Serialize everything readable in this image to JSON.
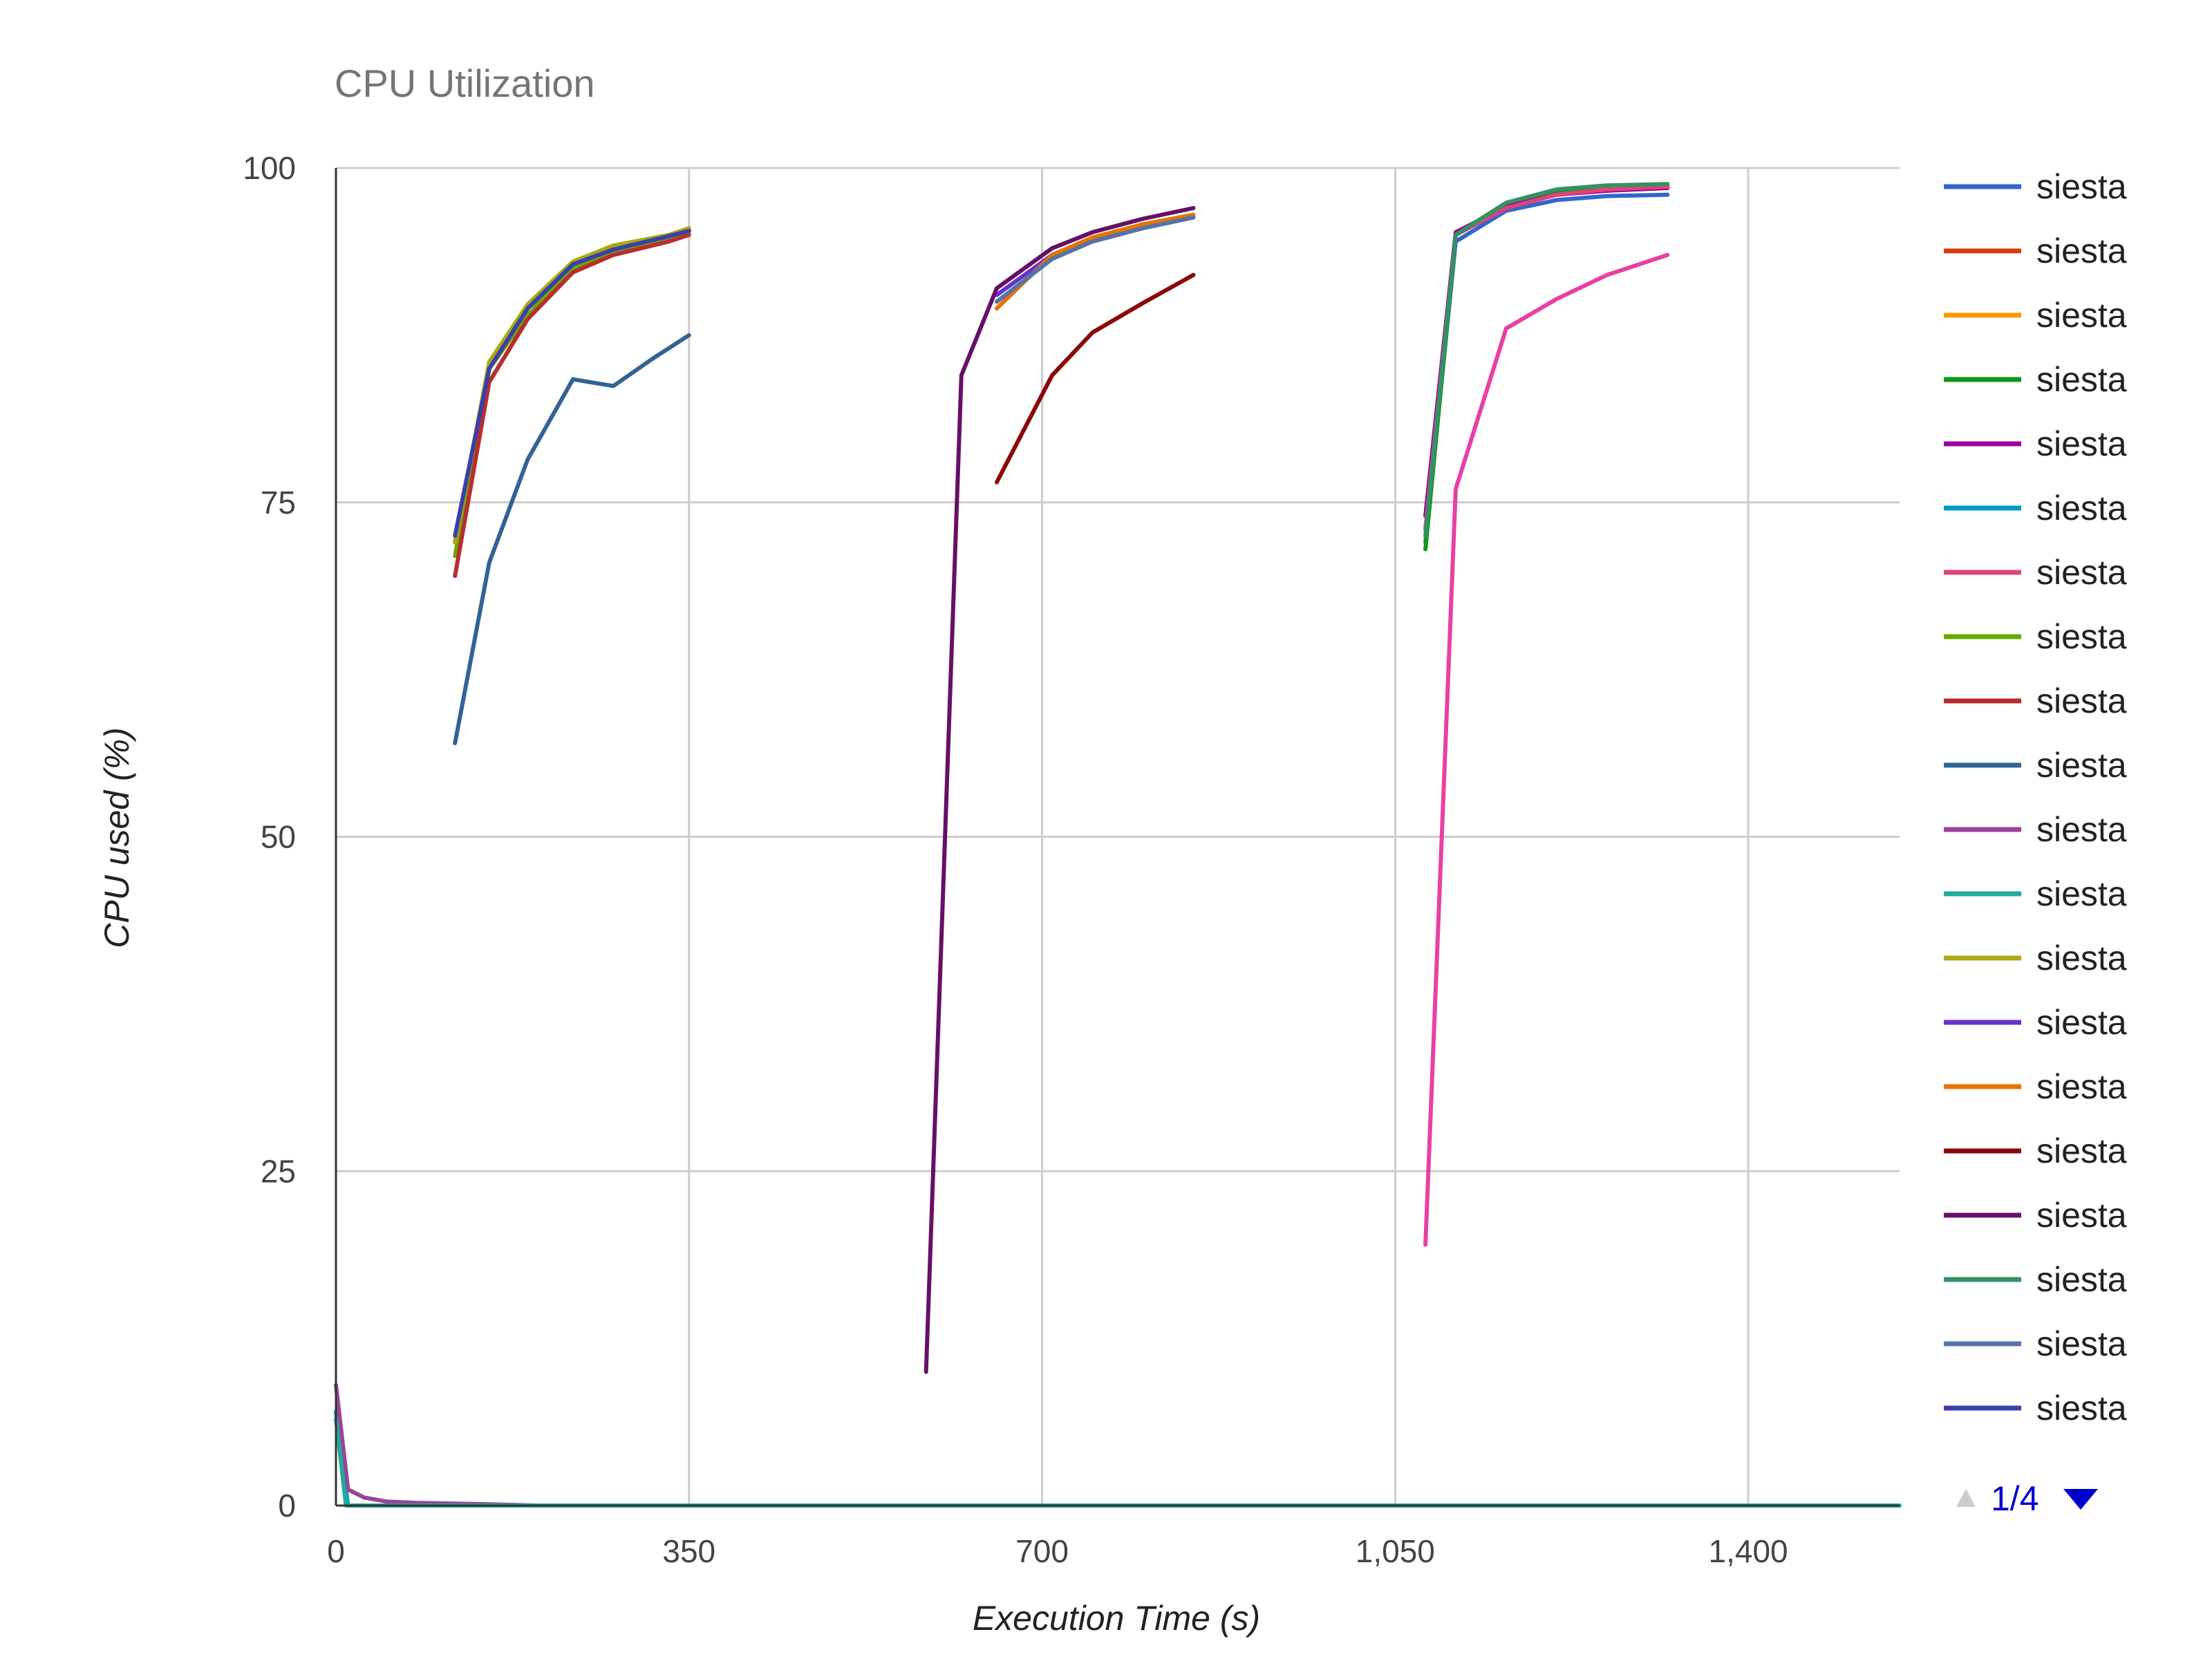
{
  "chart_data": {
    "type": "line",
    "title": "CPU Utilization",
    "xlabel": "Execution Time (s)",
    "ylabel": "CPU used (%)",
    "xlim": [
      0,
      1550
    ],
    "ylim": [
      0,
      100
    ],
    "x_ticks": [
      0,
      350,
      700,
      1050,
      1400
    ],
    "x_tick_labels": [
      "0",
      "350",
      "700",
      "1,050",
      "1,400"
    ],
    "y_ticks": [
      0,
      25,
      50,
      75,
      100
    ],
    "y_tick_labels": [
      "0",
      "25",
      "50",
      "75",
      "100"
    ],
    "grid": true,
    "legend_position": "right",
    "legend_page": "1/4",
    "series": [
      {
        "name": "siesta",
        "color": "#3366cc",
        "points": [
          [
            1080,
            72
          ],
          [
            1110,
            94.5
          ],
          [
            1160,
            96.8
          ],
          [
            1210,
            97.6
          ],
          [
            1260,
            97.9
          ],
          [
            1320,
            98
          ]
        ]
      },
      {
        "name": "siesta",
        "color": "#dc3912",
        "points": [
          [
            1080,
            73
          ],
          [
            1110,
            95
          ],
          [
            1160,
            97.2
          ],
          [
            1210,
            98.2
          ],
          [
            1260,
            98.5
          ],
          [
            1320,
            98.6
          ]
        ]
      },
      {
        "name": "siesta",
        "color": "#ff9900",
        "points": [
          [
            118,
            72
          ],
          [
            152,
            85
          ],
          [
            190,
            89.5
          ],
          [
            235,
            92.6
          ],
          [
            275,
            93.8
          ],
          [
            330,
            94.8
          ],
          [
            350,
            95.2
          ]
        ]
      },
      {
        "name": "siesta",
        "color": "#109618",
        "points": [
          [
            1080,
            71.5
          ],
          [
            1110,
            95
          ],
          [
            1160,
            97.3
          ],
          [
            1210,
            98.3
          ],
          [
            1260,
            98.6
          ],
          [
            1320,
            98.7
          ]
        ]
      },
      {
        "name": "siesta",
        "color": "#990099",
        "points": [
          [
            1080,
            74
          ],
          [
            1110,
            95.2
          ],
          [
            1160,
            97.1
          ],
          [
            1210,
            98
          ],
          [
            1260,
            98.3
          ],
          [
            1320,
            98.5
          ]
        ]
      },
      {
        "name": "siesta",
        "color": "#0099c6",
        "points": [
          [
            0,
            7
          ],
          [
            12,
            0
          ],
          [
            1550,
            0
          ]
        ]
      },
      {
        "name": "siesta",
        "color": "#dd4477",
        "points": [
          [
            1080,
            73
          ],
          [
            1110,
            95
          ],
          [
            1160,
            97
          ],
          [
            1210,
            98
          ],
          [
            1260,
            98.4
          ],
          [
            1320,
            98.6
          ]
        ]
      },
      {
        "name": "siesta",
        "color": "#66aa00",
        "points": [
          [
            118,
            71
          ],
          [
            152,
            85
          ],
          [
            190,
            89
          ],
          [
            235,
            92.5
          ],
          [
            275,
            93.6
          ],
          [
            330,
            94.6
          ],
          [
            350,
            95
          ]
        ]
      },
      {
        "name": "siesta",
        "color": "#b82e2e",
        "points": [
          [
            118,
            69.5
          ],
          [
            152,
            84
          ],
          [
            190,
            88.7
          ],
          [
            235,
            92.2
          ],
          [
            275,
            93.5
          ],
          [
            330,
            94.5
          ],
          [
            350,
            95
          ]
        ]
      },
      {
        "name": "siesta",
        "color": "#316395",
        "points": [
          [
            118,
            57
          ],
          [
            152,
            70.5
          ],
          [
            190,
            78.2
          ],
          [
            235,
            84.2
          ],
          [
            275,
            83.7
          ],
          [
            315,
            85.8
          ],
          [
            350,
            87.5
          ]
        ]
      },
      {
        "name": "siesta",
        "color": "#994499",
        "points": [
          [
            0,
            9
          ],
          [
            12,
            1.2
          ],
          [
            28,
            0.6
          ],
          [
            50,
            0.3
          ],
          [
            80,
            0.2
          ],
          [
            150,
            0.1
          ],
          [
            200,
            0
          ],
          [
            1550,
            0
          ]
        ]
      },
      {
        "name": "siesta",
        "color": "#22aa99",
        "points": [
          [
            0,
            6.5
          ],
          [
            10,
            0
          ],
          [
            1550,
            0
          ]
        ]
      },
      {
        "name": "siesta",
        "color": "#aaaa11",
        "points": [
          [
            118,
            72
          ],
          [
            152,
            85.5
          ],
          [
            190,
            89.8
          ],
          [
            235,
            93
          ],
          [
            275,
            94.2
          ],
          [
            330,
            95
          ],
          [
            350,
            95.5
          ]
        ]
      },
      {
        "name": "siesta",
        "color": "#6633cc",
        "points": [
          [
            655,
            90.5
          ],
          [
            710,
            93.5
          ],
          [
            750,
            94.5
          ],
          [
            800,
            95.5
          ],
          [
            850,
            96.3
          ]
        ]
      },
      {
        "name": "siesta",
        "color": "#e67300",
        "points": [
          [
            655,
            89.5
          ],
          [
            710,
            93.5
          ],
          [
            750,
            94.8
          ],
          [
            800,
            95.8
          ],
          [
            850,
            96.5
          ]
        ]
      },
      {
        "name": "siesta",
        "color": "#8b0707",
        "points": [
          [
            655,
            76.5
          ],
          [
            710,
            84.5
          ],
          [
            750,
            87.7
          ],
          [
            800,
            89.9
          ],
          [
            850,
            92
          ]
        ]
      },
      {
        "name": "siesta",
        "color": "#651067",
        "points": [
          [
            585,
            10
          ],
          [
            620,
            84.5
          ],
          [
            655,
            91
          ],
          [
            710,
            94
          ],
          [
            750,
            95.2
          ],
          [
            800,
            96.2
          ],
          [
            850,
            97
          ]
        ]
      },
      {
        "name": "siesta",
        "color": "#329262",
        "points": [
          [
            1080,
            72.5
          ],
          [
            1110,
            95
          ],
          [
            1160,
            97.4
          ],
          [
            1210,
            98.4
          ],
          [
            1260,
            98.7
          ],
          [
            1320,
            98.8
          ]
        ]
      },
      {
        "name": "siesta",
        "color": "#5574a6",
        "points": [
          [
            655,
            90
          ],
          [
            710,
            93.2
          ],
          [
            750,
            94.5
          ],
          [
            800,
            95.5
          ],
          [
            850,
            96.3
          ]
        ]
      },
      {
        "name": "siesta",
        "color": "#3b3eac",
        "points": [
          [
            118,
            72.5
          ],
          [
            152,
            85
          ],
          [
            190,
            89.5
          ],
          [
            235,
            92.8
          ],
          [
            275,
            93.9
          ],
          [
            330,
            94.9
          ],
          [
            350,
            95.3
          ]
        ]
      },
      {
        "name": "",
        "color": "#e83fa6",
        "points": [
          [
            1080,
            19.5
          ],
          [
            1110,
            76
          ],
          [
            1160,
            88
          ],
          [
            1210,
            90.2
          ],
          [
            1260,
            92
          ],
          [
            1320,
            93.5
          ]
        ]
      }
    ]
  }
}
